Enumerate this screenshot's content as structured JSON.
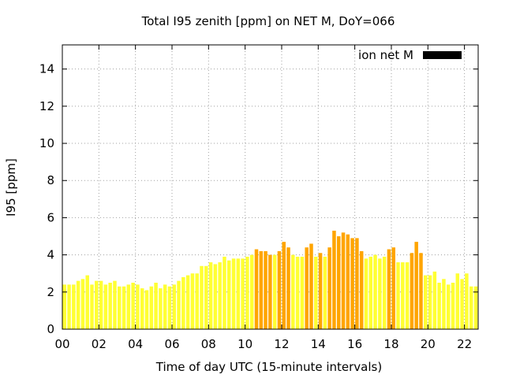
{
  "chart_data": {
    "type": "bar",
    "title": "Total I95 zenith [ppm] on NET M, DoY=066",
    "xlabel": "Time of day UTC (15-minute intervals)",
    "ylabel": "I95 [ppm]",
    "ylim": [
      0,
      15.3
    ],
    "yticks": [
      "0",
      "2",
      "4",
      "6",
      "8",
      "10",
      "12",
      "14"
    ],
    "xticks": [
      "00",
      "02",
      "04",
      "06",
      "08",
      "10",
      "12",
      "14",
      "16",
      "18",
      "20",
      "22"
    ],
    "xlim_hours": [
      0,
      22.75
    ],
    "interval_hours": 0.25,
    "grid": true,
    "legend": {
      "label": "ion net M",
      "color": "#000000",
      "placement": "top-right"
    },
    "colors": {
      "low": "#ffff33",
      "high": "#ffa500"
    },
    "values": [
      2.4,
      2.4,
      2.4,
      2.6,
      2.7,
      2.9,
      2.4,
      2.6,
      2.6,
      2.4,
      2.5,
      2.6,
      2.3,
      2.3,
      2.4,
      2.5,
      2.4,
      2.2,
      2.1,
      2.3,
      2.5,
      2.2,
      2.4,
      2.3,
      2.4,
      2.6,
      2.8,
      2.9,
      3.0,
      3.0,
      3.4,
      3.4,
      3.6,
      3.5,
      3.6,
      3.9,
      3.7,
      3.8,
      3.8,
      3.8,
      3.9,
      4.0,
      4.3,
      4.2,
      4.2,
      4.0,
      4.0,
      4.2,
      4.7,
      4.4,
      4.0,
      3.9,
      3.9,
      4.4,
      4.6,
      3.9,
      4.1,
      3.9,
      4.4,
      5.3,
      5.0,
      5.2,
      5.1,
      4.9,
      4.9,
      4.2,
      3.8,
      3.9,
      4.0,
      3.8,
      3.9,
      4.3,
      4.4,
      3.6,
      3.6,
      3.6,
      4.1,
      4.7,
      4.1,
      2.9,
      2.9,
      3.1,
      2.5,
      2.7,
      2.4,
      2.5,
      3.0,
      2.7,
      3.0,
      2.3,
      2.3,
      2.2,
      2.6
    ],
    "high": [
      false,
      false,
      false,
      false,
      false,
      false,
      false,
      false,
      false,
      false,
      false,
      false,
      false,
      false,
      false,
      false,
      false,
      false,
      false,
      false,
      false,
      false,
      false,
      false,
      false,
      false,
      false,
      false,
      false,
      false,
      false,
      false,
      false,
      false,
      false,
      false,
      false,
      false,
      false,
      false,
      false,
      false,
      true,
      true,
      true,
      true,
      false,
      true,
      true,
      true,
      false,
      false,
      false,
      true,
      true,
      false,
      true,
      false,
      true,
      true,
      true,
      true,
      true,
      true,
      true,
      true,
      false,
      false,
      false,
      false,
      false,
      true,
      true,
      false,
      false,
      false,
      true,
      true,
      true,
      false,
      false,
      false,
      false,
      false,
      false,
      false,
      false,
      false,
      false,
      false,
      false,
      false,
      false
    ]
  }
}
